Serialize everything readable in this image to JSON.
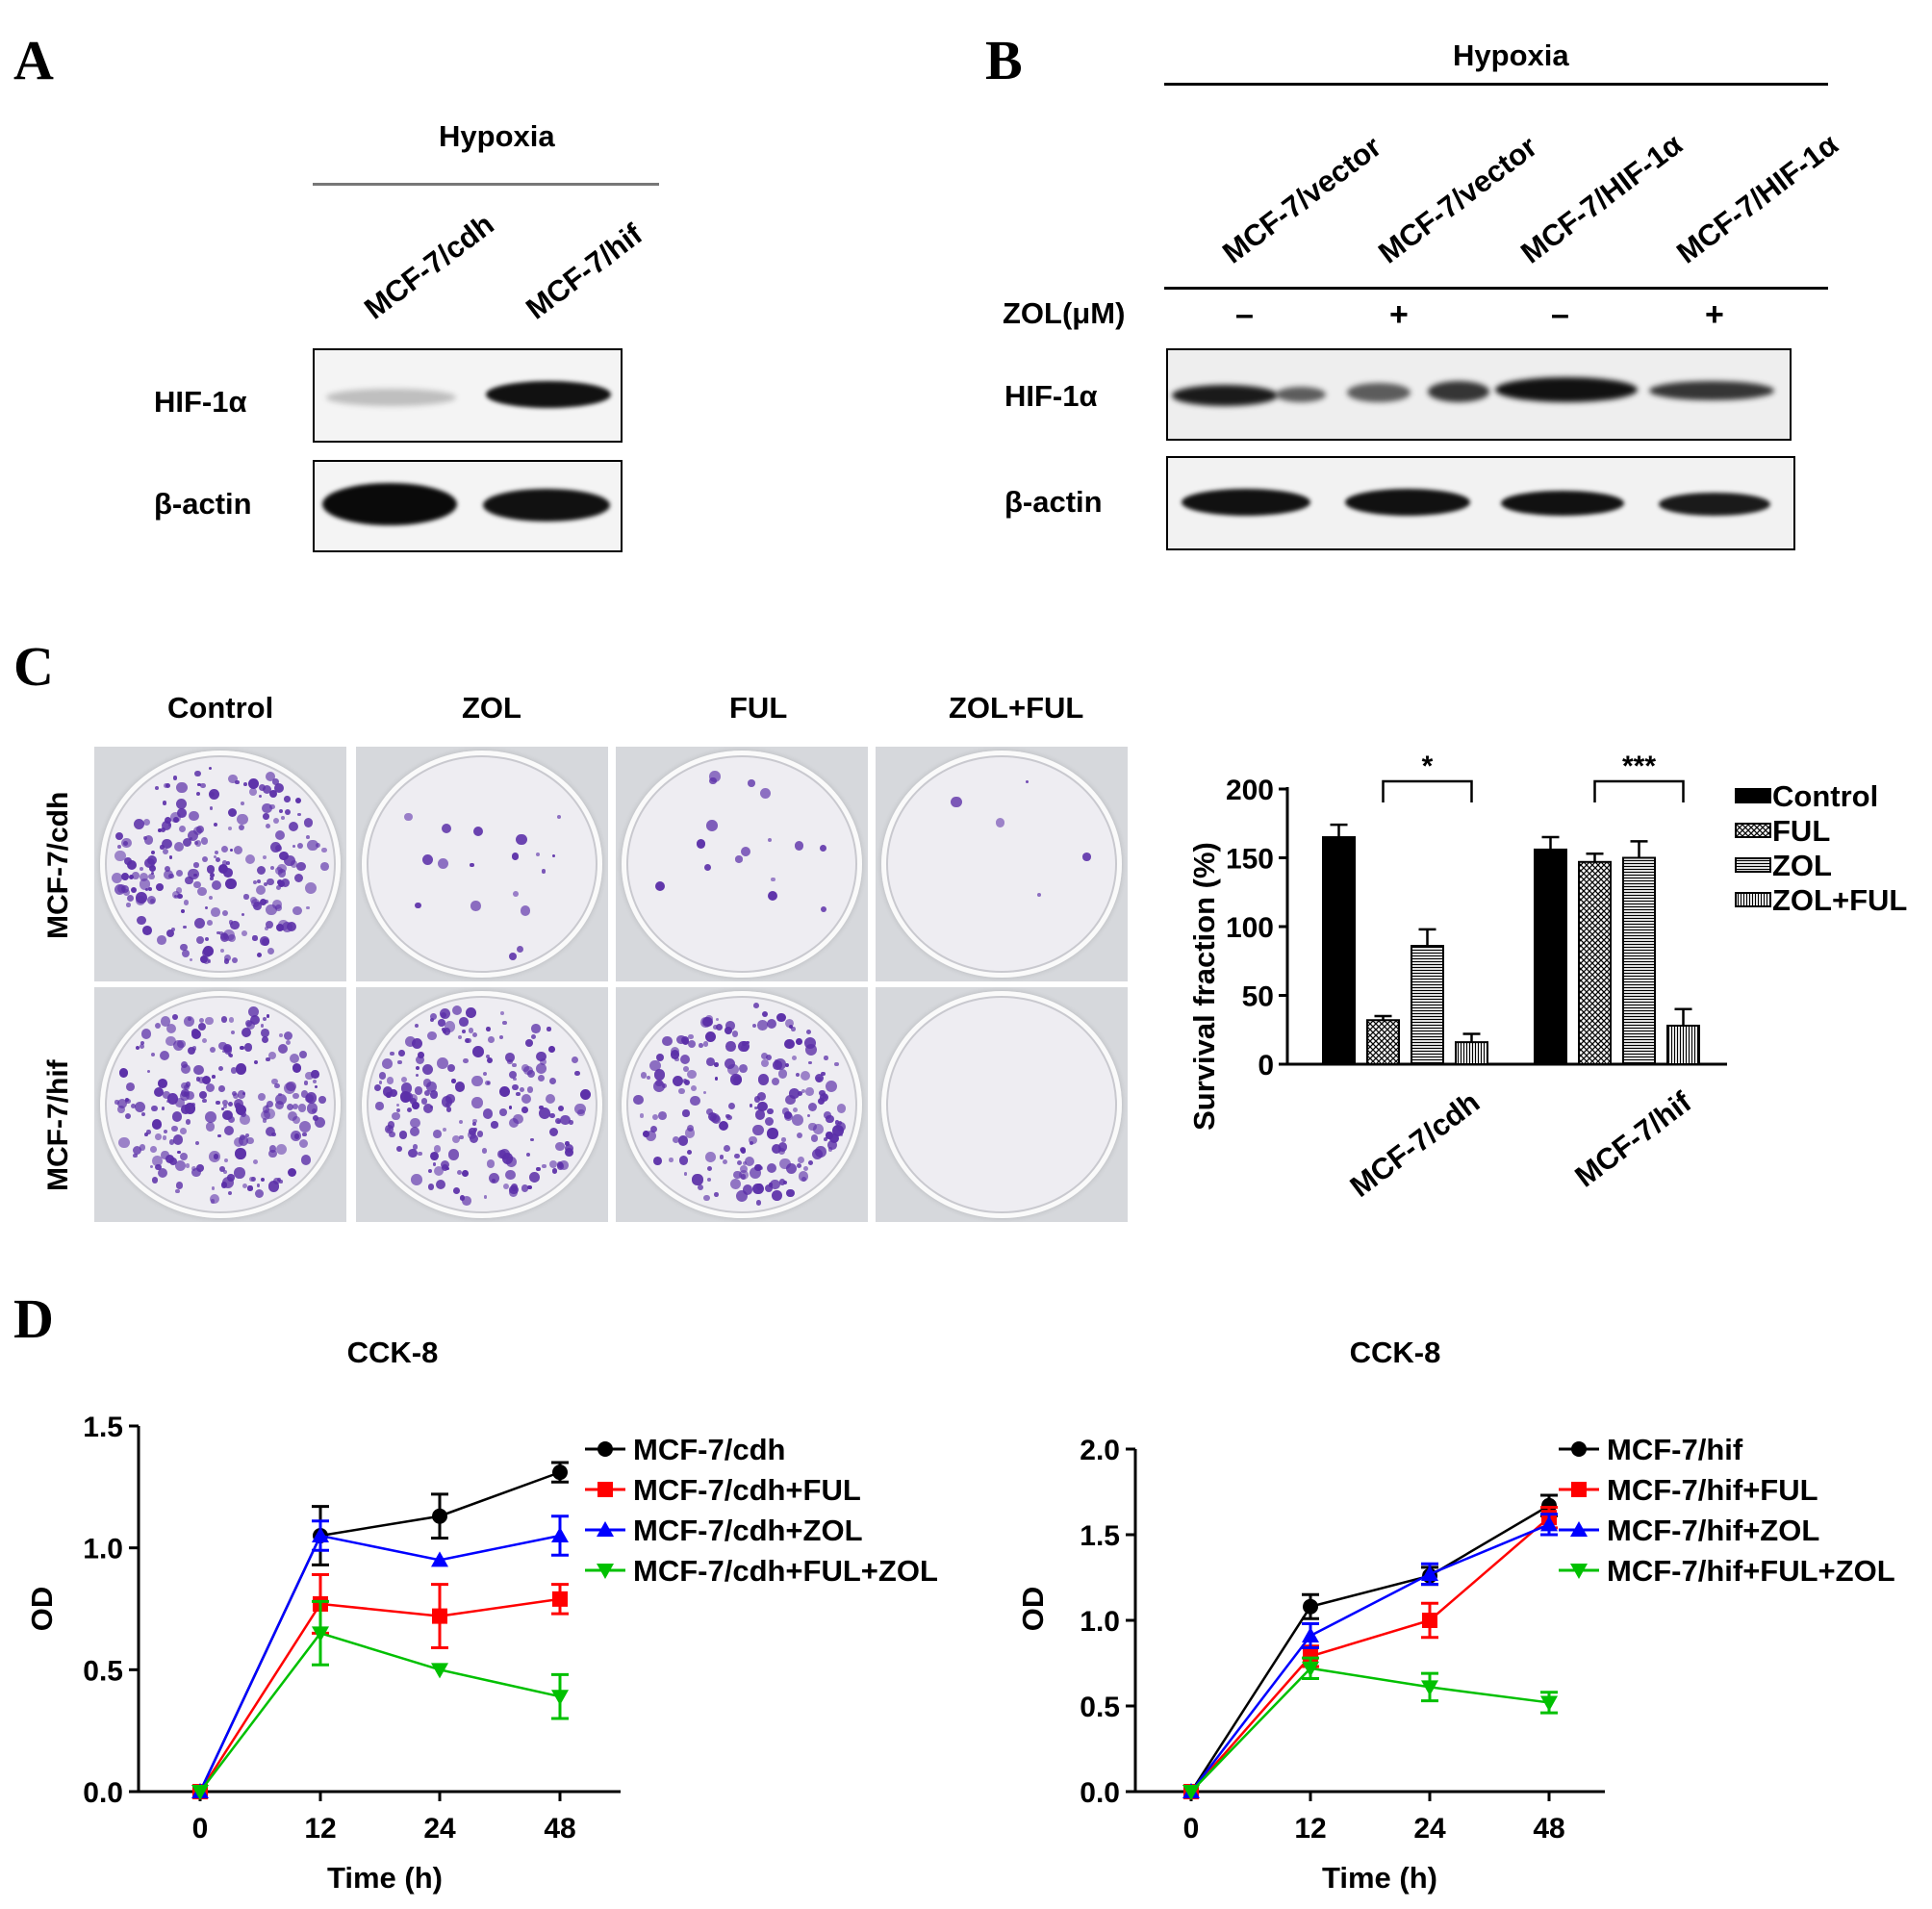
{
  "panels": {
    "a": "A",
    "b": "B",
    "c": "C",
    "d": "D"
  },
  "panel_a": {
    "condition": "Hypoxia",
    "lanes": [
      "MCF-7/cdh",
      "MCF-7/hif"
    ],
    "rows": [
      "HIF-1α",
      "β-actin"
    ]
  },
  "panel_b": {
    "condition": "Hypoxia",
    "lanes": [
      "MCF-7/vector",
      "MCF-7/vector",
      "MCF-7/HIF-1α",
      "MCF-7/HIF-1α"
    ],
    "treatment_label": "ZOL(μM)",
    "treatment_signs": [
      "–",
      "+",
      "–",
      "+"
    ],
    "rows": [
      "HIF-1α",
      "β-actin"
    ]
  },
  "panel_c": {
    "columns": [
      "Control",
      "ZOL",
      "FUL",
      "ZOL+FUL"
    ],
    "rows": [
      "MCF-7/cdh",
      "MCF-7/hif"
    ],
    "colony_density": [
      [
        1.0,
        0.08,
        0.07,
        0.02
      ],
      [
        1.0,
        0.85,
        0.9,
        0.0
      ]
    ]
  },
  "chart_data": [
    {
      "type": "bar",
      "ylabel": "Survival fraction (%)",
      "ylim": [
        0,
        200
      ],
      "yticks": [
        "0",
        "50",
        "100",
        "150",
        "200"
      ],
      "categories": [
        "MCF-7/cdh",
        "MCF-7/hif"
      ],
      "series": [
        {
          "name": "Control",
          "values": [
            165,
            156
          ],
          "errors": [
            9,
            9
          ],
          "color": "#000000",
          "pattern": "solid"
        },
        {
          "name": "FUL",
          "values": [
            32,
            147
          ],
          "errors": [
            3,
            6
          ],
          "color": "#000000",
          "pattern": "crosshatch"
        },
        {
          "name": "ZOL",
          "values": [
            86,
            150
          ],
          "errors": [
            12,
            12
          ],
          "color": "#000000",
          "pattern": "horizontal"
        },
        {
          "name": "ZOL+FUL",
          "values": [
            16,
            28
          ],
          "errors": [
            6,
            12
          ],
          "color": "#000000",
          "pattern": "vertical"
        }
      ],
      "significance": [
        {
          "category": "MCF-7/cdh",
          "label": "*"
        },
        {
          "category": "MCF-7/hif",
          "label": "***"
        }
      ],
      "legend": "right"
    },
    {
      "type": "line",
      "title": "CCK-8",
      "xlabel": "Time (h)",
      "ylabel": "OD",
      "x": [
        "0",
        "12",
        "24",
        "48"
      ],
      "ylim": [
        0,
        1.5
      ],
      "yticks": [
        "0.0",
        "0.5",
        "1.0",
        "1.5"
      ],
      "series": [
        {
          "name": "MCF-7/cdh",
          "values": [
            0,
            1.05,
            1.13,
            1.31
          ],
          "errors": [
            0,
            0.12,
            0.09,
            0.04
          ],
          "color": "#000000",
          "marker": "circle"
        },
        {
          "name": "MCF-7/cdh+FUL",
          "values": [
            0,
            0.77,
            0.72,
            0.79
          ],
          "errors": [
            0,
            0.12,
            0.13,
            0.06
          ],
          "color": "#ff0000",
          "marker": "square"
        },
        {
          "name": "MCF-7/cdh+ZOL",
          "values": [
            0,
            1.05,
            0.95,
            1.05
          ],
          "errors": [
            0,
            0.06,
            0.0,
            0.08
          ],
          "color": "#0000ff",
          "marker": "triangle-up"
        },
        {
          "name": "MCF-7/cdh+FUL+ZOL",
          "values": [
            0,
            0.65,
            0.5,
            0.39
          ],
          "errors": [
            0,
            0.13,
            0.0,
            0.09
          ],
          "color": "#00c000",
          "marker": "triangle-down"
        }
      ],
      "legend": "top-right"
    },
    {
      "type": "line",
      "title": "CCK-8",
      "xlabel": "Time (h)",
      "ylabel": "OD",
      "x": [
        "0",
        "12",
        "24",
        "48"
      ],
      "ylim": [
        0,
        2.0
      ],
      "yticks": [
        "0.0",
        "0.5",
        "1.0",
        "1.5",
        "2.0"
      ],
      "series": [
        {
          "name": "MCF-7/hif",
          "values": [
            0,
            1.08,
            1.26,
            1.67
          ],
          "errors": [
            0,
            0.07,
            0.05,
            0.06
          ],
          "color": "#000000",
          "marker": "circle"
        },
        {
          "name": "MCF-7/hif+FUL",
          "values": [
            0,
            0.79,
            1.0,
            1.6
          ],
          "errors": [
            0,
            0.06,
            0.1,
            0.06
          ],
          "color": "#ff0000",
          "marker": "square"
        },
        {
          "name": "MCF-7/hif+ZOL",
          "values": [
            0,
            0.91,
            1.27,
            1.56
          ],
          "errors": [
            0,
            0.07,
            0.06,
            0.06
          ],
          "color": "#0000ff",
          "marker": "triangle-up"
        },
        {
          "name": "MCF-7/hif+FUL+ZOL",
          "values": [
            0,
            0.72,
            0.61,
            0.52
          ],
          "errors": [
            0,
            0.06,
            0.08,
            0.06
          ],
          "color": "#00c000",
          "marker": "triangle-down"
        }
      ],
      "legend": "top-right"
    }
  ]
}
